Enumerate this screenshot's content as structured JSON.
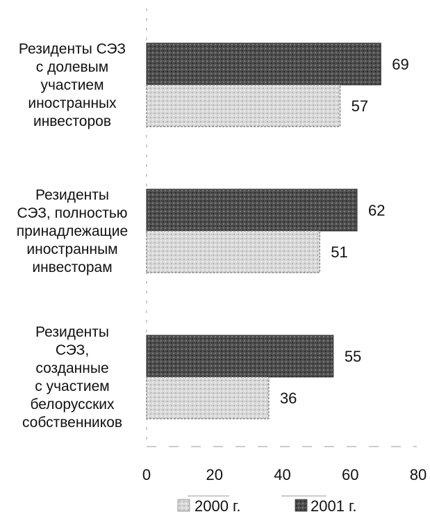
{
  "chart_data": {
    "type": "bar",
    "orientation": "horizontal",
    "categories": [
      [
        "Резиденты СЭЗ",
        "с долевым",
        "участием",
        "иностранных",
        "инвесторов"
      ],
      [
        "Резиденты",
        "СЭЗ, полностью",
        "принадлежащие",
        "иностранным",
        "инвесторам"
      ],
      [
        "Резиденты",
        "СЭЗ,",
        "созданные",
        "с участием",
        "белорусских",
        "собственников"
      ]
    ],
    "series": [
      {
        "name": "2001 г.",
        "values": [
          69,
          62,
          55
        ],
        "color": "#4a4a4a"
      },
      {
        "name": "2000 г.",
        "values": [
          57,
          51,
          36
        ],
        "color": "#cfcfcf"
      }
    ],
    "xlim": [
      0,
      80
    ],
    "xticks": [
      0,
      20,
      40,
      60,
      80
    ],
    "grid": false,
    "legend": {
      "placement": "bottom",
      "order": [
        "2000 г.",
        "2001 г."
      ]
    }
  }
}
